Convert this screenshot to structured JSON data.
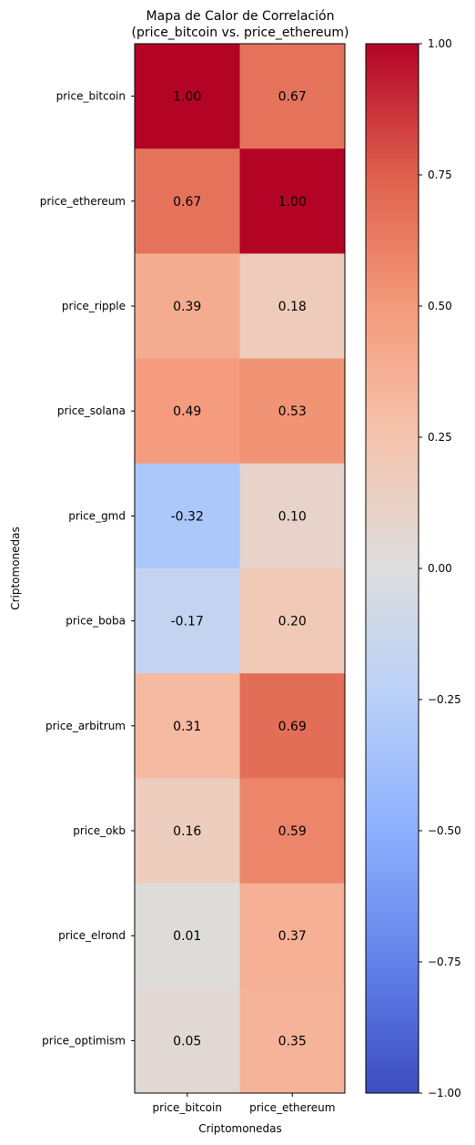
{
  "chart_data": {
    "type": "heatmap",
    "title_lines": [
      "Mapa de Calor de Correlación",
      "(price_bitcoin vs. price_ethereum)"
    ],
    "xlabel": "Criptomonedas",
    "ylabel": "Criptomonedas",
    "columns": [
      "price_bitcoin",
      "price_ethereum"
    ],
    "rows": [
      "price_bitcoin",
      "price_ethereum",
      "price_ripple",
      "price_solana",
      "price_gmd",
      "price_boba",
      "price_arbitrum",
      "price_okb",
      "price_elrond",
      "price_optimism"
    ],
    "values": [
      [
        1.0,
        0.67
      ],
      [
        0.67,
        1.0
      ],
      [
        0.39,
        0.18
      ],
      [
        0.49,
        0.53
      ],
      [
        -0.32,
        0.1
      ],
      [
        -0.17,
        0.2
      ],
      [
        0.31,
        0.69
      ],
      [
        0.16,
        0.59
      ],
      [
        0.01,
        0.37
      ],
      [
        0.05,
        0.35
      ]
    ],
    "value_labels": [
      [
        "1.00",
        "0.67"
      ],
      [
        "0.67",
        "1.00"
      ],
      [
        "0.39",
        "0.18"
      ],
      [
        "0.49",
        "0.53"
      ],
      [
        "-0.32",
        "0.10"
      ],
      [
        "-0.17",
        "0.20"
      ],
      [
        "0.31",
        "0.69"
      ],
      [
        "0.16",
        "0.59"
      ],
      [
        "0.01",
        "0.37"
      ],
      [
        "0.05",
        "0.35"
      ]
    ],
    "colormap": "coolwarm",
    "vmin": -1.0,
    "vmax": 1.0,
    "colorbar_ticks": [
      1.0,
      0.75,
      0.5,
      0.25,
      0.0,
      -0.25,
      -0.5,
      -0.75,
      -1.0
    ],
    "colorbar_tick_labels": [
      "1.00",
      "0.75",
      "0.50",
      "0.25",
      "0.00",
      "−0.25",
      "−0.50",
      "−0.75",
      "−1.00"
    ],
    "grid": false
  }
}
